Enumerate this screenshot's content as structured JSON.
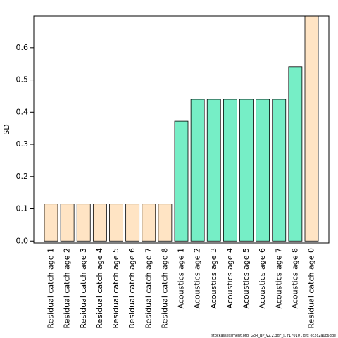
{
  "chart_data": {
    "type": "bar",
    "ylabel": "SD",
    "categories": [
      "Residual catch age 1",
      "Residual catch age 2",
      "Residual catch age 3",
      "Residual catch age 4",
      "Residual catch age 5",
      "Residual catch age 6",
      "Residual catch age 7",
      "Residual catch age 8",
      "Acoustics age 1",
      "Acoustics age 2",
      "Acoustics age 3",
      "Acoustics age 4",
      "Acoustics age 5",
      "Acoustics age 6",
      "Acoustics age 7",
      "Acoustics age 8",
      "Residual catch age 0"
    ],
    "values": [
      0.115,
      0.115,
      0.115,
      0.115,
      0.115,
      0.115,
      0.115,
      0.115,
      0.372,
      0.44,
      0.44,
      0.44,
      0.44,
      0.44,
      0.44,
      0.541,
      0.698
    ],
    "colors": [
      "#ffe4c4",
      "#ffe4c4",
      "#ffe4c4",
      "#ffe4c4",
      "#ffe4c4",
      "#ffe4c4",
      "#ffe4c4",
      "#ffe4c4",
      "#76eec6",
      "#76eec6",
      "#76eec6",
      "#76eec6",
      "#76eec6",
      "#76eec6",
      "#76eec6",
      "#76eec6",
      "#ffe4c4"
    ],
    "ylim": [
      -0.006,
      0.698
    ],
    "yticks": [
      {
        "value": 0,
        "label": "0.0"
      },
      0.1,
      0.2,
      0.3,
      0.4,
      0.5,
      0.6
    ],
    "footnote": "stockassessment.org, GoR_BP_v2.2.3gF_s, r17010 , git: ec2c2a0c6dde"
  }
}
